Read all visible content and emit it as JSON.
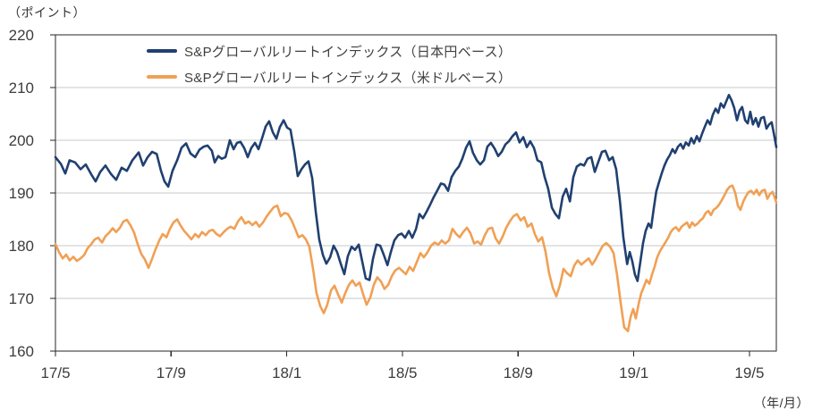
{
  "colors": {
    "background": "#ffffff",
    "grid": "#c5c8cb",
    "axis": "#262626",
    "tick_text": "#3c3c3c",
    "legend_text": "#3f3f3f"
  },
  "chart_data": {
    "type": "line",
    "title": "",
    "grid": true,
    "legend_position": "top-left-inside",
    "y_axis": {
      "unit_label": "（ポイント）",
      "min": 160,
      "max": 220,
      "tick_step": 10,
      "ticks": [
        220,
        210,
        200,
        190,
        180,
        170,
        160
      ]
    },
    "x_axis": {
      "unit_label": "（年/月）",
      "tick_labels": [
        "17/5",
        "17/9",
        "18/1",
        "18/5",
        "18/9",
        "19/1",
        "19/5"
      ],
      "tick_months": [
        0,
        4,
        8,
        12,
        16,
        20,
        24
      ],
      "x_max": 24.93
    },
    "series": [
      {
        "name": "S&Pグローバルリートインデックス（日本円ベース）",
        "color": "#204070",
        "x": [
          0,
          0.19,
          0.34,
          0.49,
          0.68,
          0.87,
          1.05,
          1.24,
          1.39,
          1.55,
          1.73,
          1.92,
          2.1,
          2.29,
          2.47,
          2.66,
          2.88,
          3.03,
          3.19,
          3.34,
          3.5,
          3.65,
          3.77,
          3.9,
          4.05,
          4.21,
          4.36,
          4.52,
          4.67,
          4.83,
          4.98,
          5.13,
          5.26,
          5.41,
          5.51,
          5.63,
          5.75,
          5.88,
          6.03,
          6.16,
          6.28,
          6.4,
          6.53,
          6.65,
          6.77,
          6.9,
          7.02,
          7.15,
          7.27,
          7.39,
          7.52,
          7.64,
          7.76,
          7.89,
          8.01,
          8.13,
          8.26,
          8.38,
          8.51,
          8.63,
          8.75,
          8.88,
          9,
          9.12,
          9.25,
          9.37,
          9.5,
          9.62,
          9.74,
          9.87,
          9.99,
          10.11,
          10.24,
          10.36,
          10.49,
          10.61,
          10.73,
          10.86,
          10.98,
          11.1,
          11.23,
          11.35,
          11.48,
          11.6,
          11.72,
          11.85,
          11.97,
          12.09,
          12.22,
          12.34,
          12.47,
          12.59,
          12.71,
          12.84,
          12.96,
          13.08,
          13.21,
          13.33,
          13.45,
          13.58,
          13.7,
          13.83,
          13.95,
          14.07,
          14.2,
          14.32,
          14.44,
          14.57,
          14.69,
          14.82,
          14.94,
          15.06,
          15.19,
          15.31,
          15.43,
          15.56,
          15.68,
          15.81,
          15.93,
          16.05,
          16.18,
          16.3,
          16.42,
          16.55,
          16.67,
          16.8,
          16.92,
          17.04,
          17.17,
          17.29,
          17.41,
          17.54,
          17.66,
          17.79,
          17.91,
          18.03,
          18.16,
          18.28,
          18.4,
          18.53,
          18.65,
          18.78,
          18.9,
          19.02,
          19.15,
          19.27,
          19.39,
          19.52,
          19.64,
          19.77,
          19.86,
          19.95,
          20.04,
          20.13,
          20.23,
          20.32,
          20.41,
          20.51,
          20.6,
          20.69,
          20.78,
          20.88,
          20.97,
          21.06,
          21.15,
          21.25,
          21.34,
          21.43,
          21.53,
          21.62,
          21.71,
          21.8,
          21.9,
          21.99,
          22.08,
          22.18,
          22.27,
          22.36,
          22.46,
          22.55,
          22.64,
          22.73,
          22.83,
          22.92,
          23.01,
          23.11,
          23.2,
          23.29,
          23.38,
          23.47,
          23.57,
          23.66,
          23.75,
          23.85,
          23.94,
          24.03,
          24.12,
          24.22,
          24.31,
          24.4,
          24.5,
          24.59,
          24.68,
          24.77,
          24.87,
          24.93
        ],
        "values": [
          196.8,
          195.5,
          193.7,
          196.2,
          195.8,
          194.5,
          195.4,
          193.5,
          192.2,
          194,
          195.2,
          193.6,
          192.5,
          194.8,
          194.2,
          196.2,
          197.7,
          195.2,
          196.8,
          197.8,
          197.4,
          194.2,
          192.2,
          191.2,
          194.2,
          196.2,
          198.6,
          199.4,
          197.5,
          196.8,
          198.2,
          198.8,
          199,
          198,
          195.8,
          197,
          196.5,
          196.8,
          200,
          198.3,
          199.5,
          199.7,
          198.5,
          196.8,
          198.5,
          199.5,
          198.3,
          200.5,
          202.6,
          203.6,
          201.5,
          200.3,
          202.5,
          203.8,
          202.4,
          202,
          197.8,
          193.2,
          194.5,
          195.4,
          196,
          192.8,
          186.5,
          181.2,
          178.2,
          176.6,
          177.8,
          180,
          178.8,
          176.5,
          174.6,
          178,
          179.8,
          179.2,
          180.2,
          177,
          173.8,
          173.5,
          177.5,
          180.2,
          180,
          178.3,
          176.3,
          178.8,
          181,
          182,
          182.3,
          181.5,
          182.8,
          181.5,
          183.2,
          186,
          185.2,
          186.5,
          187.8,
          189.2,
          190.5,
          191.8,
          191.6,
          190.4,
          193,
          194.2,
          195,
          196.5,
          198.6,
          199.8,
          197.6,
          196.2,
          195.4,
          196.2,
          198.8,
          199.5,
          198.4,
          197,
          197.8,
          199.2,
          199.8,
          200.8,
          201.5,
          199.6,
          200.6,
          198.7,
          199.8,
          198.5,
          196.2,
          195.8,
          193,
          190.8,
          187.2,
          186,
          185.2,
          189.3,
          190.8,
          188.4,
          193,
          195,
          195.5,
          195.2,
          196.5,
          196.8,
          194,
          196,
          197.8,
          198,
          196.2,
          196.8,
          194.5,
          188.5,
          181.5,
          176.5,
          178.8,
          177,
          174.5,
          173.3,
          177,
          180.5,
          182.8,
          184.2,
          183.4,
          187,
          190.3,
          192.2,
          193.8,
          195.2,
          196.3,
          197.2,
          198.3,
          197.6,
          198.8,
          199.3,
          198.4,
          199.6,
          199,
          200.4,
          199.4,
          200.8,
          199.8,
          201.2,
          202.6,
          203.8,
          203,
          204.8,
          206,
          205.2,
          207,
          206.2,
          207.4,
          208.6,
          207.6,
          206.2,
          203.8,
          205.6,
          206.3,
          203.8,
          203.2,
          205.4,
          203,
          204.2,
          202.6,
          204.2,
          204.4,
          202.2,
          203,
          203.4,
          200.5,
          198.7
        ]
      },
      {
        "name": "S&Pグローバルリートインデックス（米ドルベース）",
        "color": "#f0a055",
        "x": [
          0,
          0.12,
          0.25,
          0.37,
          0.49,
          0.62,
          0.74,
          0.87,
          0.99,
          1.11,
          1.24,
          1.36,
          1.48,
          1.61,
          1.73,
          1.86,
          1.98,
          2.1,
          2.23,
          2.35,
          2.47,
          2.6,
          2.72,
          2.85,
          2.97,
          3.09,
          3.22,
          3.34,
          3.46,
          3.59,
          3.71,
          3.84,
          3.96,
          4.08,
          4.21,
          4.33,
          4.45,
          4.58,
          4.7,
          4.83,
          4.95,
          5.07,
          5.2,
          5.32,
          5.44,
          5.57,
          5.69,
          5.82,
          5.94,
          6.06,
          6.19,
          6.31,
          6.43,
          6.56,
          6.68,
          6.81,
          6.93,
          7.05,
          7.18,
          7.3,
          7.42,
          7.55,
          7.67,
          7.79,
          7.92,
          8.04,
          8.17,
          8.29,
          8.41,
          8.54,
          8.66,
          8.78,
          8.91,
          9.03,
          9.16,
          9.28,
          9.4,
          9.53,
          9.65,
          9.77,
          9.9,
          10.02,
          10.15,
          10.27,
          10.39,
          10.52,
          10.64,
          10.76,
          10.89,
          11.01,
          11.13,
          11.26,
          11.38,
          11.51,
          11.63,
          11.75,
          11.88,
          12,
          12.12,
          12.25,
          12.37,
          12.49,
          12.62,
          12.74,
          12.87,
          12.99,
          13.11,
          13.24,
          13.36,
          13.48,
          13.61,
          13.73,
          13.86,
          13.98,
          14.1,
          14.23,
          14.35,
          14.48,
          14.6,
          14.72,
          14.85,
          14.97,
          15.1,
          15.22,
          15.34,
          15.47,
          15.59,
          15.71,
          15.84,
          15.96,
          16.09,
          16.21,
          16.33,
          16.46,
          16.58,
          16.7,
          16.83,
          16.95,
          17.07,
          17.2,
          17.32,
          17.45,
          17.57,
          17.69,
          17.82,
          17.94,
          18.06,
          18.19,
          18.31,
          18.44,
          18.56,
          18.68,
          18.81,
          18.93,
          19.05,
          19.18,
          19.3,
          19.42,
          19.55,
          19.67,
          19.8,
          19.89,
          19.98,
          20.07,
          20.17,
          20.26,
          20.35,
          20.44,
          20.54,
          20.63,
          20.72,
          20.81,
          20.91,
          21,
          21.09,
          21.19,
          21.28,
          21.37,
          21.46,
          21.56,
          21.65,
          21.74,
          21.84,
          21.93,
          22.02,
          22.11,
          22.21,
          22.3,
          22.39,
          22.49,
          22.58,
          22.67,
          22.76,
          22.86,
          22.95,
          23.04,
          23.14,
          23.23,
          23.32,
          23.41,
          23.51,
          23.6,
          23.69,
          23.79,
          23.88,
          23.97,
          24.06,
          24.15,
          24.25,
          24.34,
          24.43,
          24.53,
          24.62,
          24.71,
          24.8,
          24.87,
          24.93
        ],
        "values": [
          180.3,
          178.8,
          177.6,
          178.3,
          177.2,
          177.9,
          177.1,
          177.6,
          178.2,
          179.5,
          180.3,
          181.2,
          181.5,
          180.6,
          181.8,
          182.5,
          183.3,
          182.6,
          183.4,
          184.6,
          184.9,
          183.8,
          182.5,
          180.2,
          178.4,
          177.4,
          175.8,
          177.5,
          179.3,
          181,
          182.2,
          181.6,
          183.2,
          184.4,
          185,
          183.8,
          182.8,
          182,
          181.2,
          182.2,
          181.6,
          182.6,
          182,
          182.8,
          183,
          182.2,
          181.8,
          182.6,
          183.2,
          183.6,
          183.2,
          184.6,
          185.4,
          184.2,
          184.6,
          183.9,
          184.5,
          183.6,
          184.4,
          185.5,
          186.4,
          187.3,
          187.6,
          185.6,
          186.2,
          186,
          184.8,
          183.2,
          181.6,
          182,
          181.2,
          179.8,
          175.5,
          171,
          168.5,
          167.2,
          168.8,
          171.5,
          172.4,
          170.8,
          169.2,
          171,
          172.6,
          173.4,
          172.4,
          173,
          170.8,
          168.8,
          170.2,
          172.6,
          174,
          173.2,
          171.8,
          172.6,
          174.2,
          175.3,
          175.8,
          175.2,
          174.6,
          176,
          175.2,
          176.8,
          178.6,
          177.8,
          178.8,
          180,
          180.6,
          180.2,
          181,
          180.4,
          181,
          183.2,
          182.2,
          181.6,
          182.6,
          183.4,
          182.4,
          180.4,
          180.8,
          180.2,
          182,
          183.2,
          183.4,
          181.4,
          180.4,
          181.8,
          183.4,
          184.6,
          185.6,
          186,
          184.8,
          185.4,
          183.6,
          184.2,
          182.2,
          180.8,
          181.6,
          178.8,
          174.8,
          172,
          170.4,
          172.6,
          175.6,
          174.8,
          174.2,
          176.2,
          177.2,
          176.4,
          177,
          177.6,
          176.4,
          177.4,
          178.8,
          180,
          180.5,
          179.8,
          178.6,
          174.5,
          169,
          164.5,
          163.8,
          166.5,
          168,
          166.2,
          169,
          171,
          172.2,
          173.5,
          172.8,
          174.5,
          176,
          177.8,
          179,
          179.8,
          180.6,
          181.5,
          182.6,
          183.2,
          183.5,
          182.8,
          183.6,
          184,
          184.4,
          183.4,
          184.4,
          183.8,
          184.2,
          184.8,
          185.2,
          186.2,
          186.6,
          185.8,
          186.8,
          187.2,
          187.8,
          188.6,
          189.6,
          190.6,
          191.2,
          191.4,
          190,
          187.6,
          186.8,
          188.4,
          189.4,
          190.2,
          190.4,
          189.8,
          190.6,
          189.6,
          190.4,
          190.6,
          188.9,
          189.8,
          190.2,
          189.2,
          188.2
        ]
      }
    ]
  }
}
